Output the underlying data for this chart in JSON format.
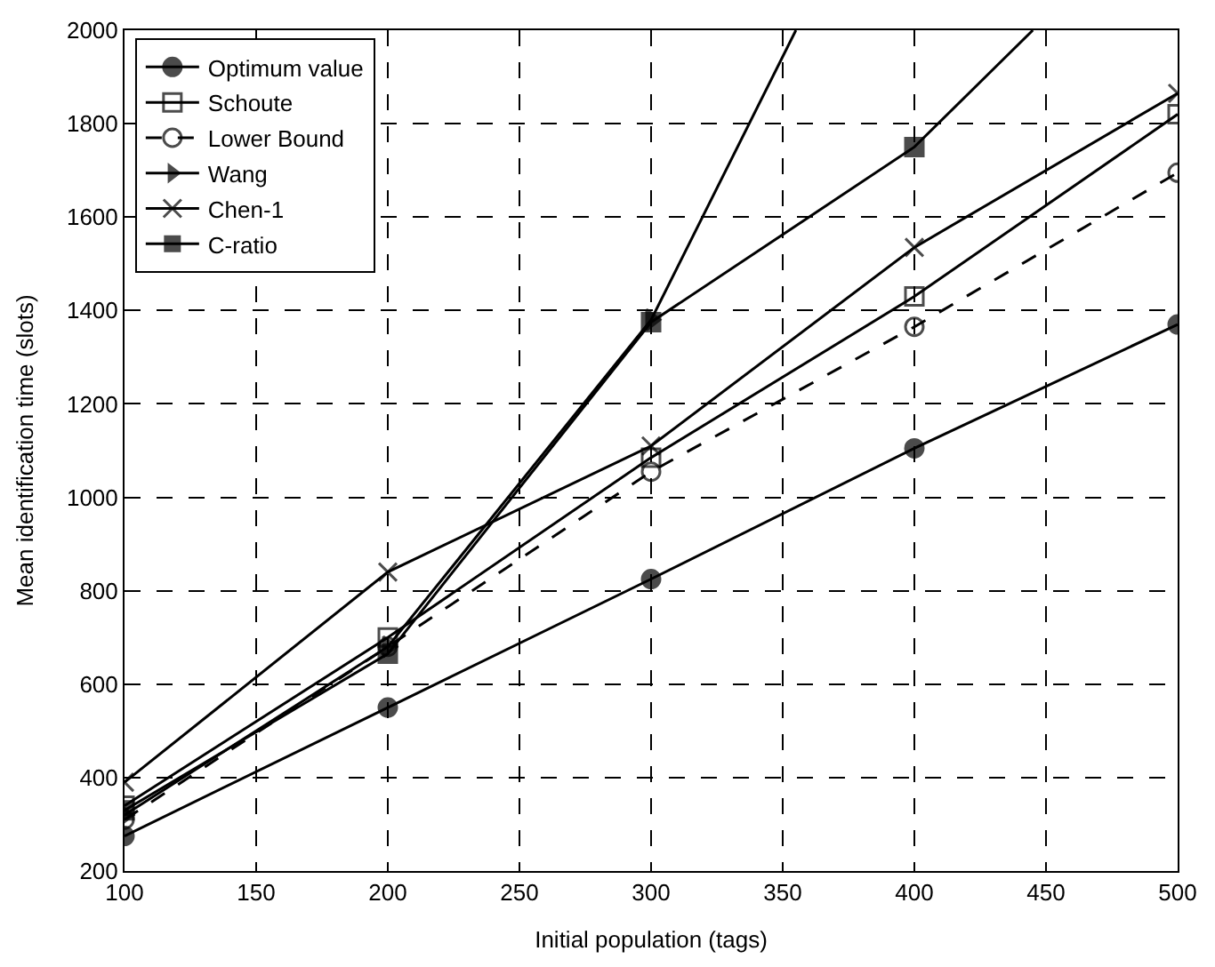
{
  "chart_data": {
    "type": "line",
    "xlabel": "Initial population (tags)",
    "ylabel": "Mean identification time (slots)",
    "x": [
      100,
      200,
      300,
      400,
      500
    ],
    "xlim": [
      100,
      500
    ],
    "xticks": [
      100,
      150,
      200,
      250,
      300,
      350,
      400,
      450,
      500
    ],
    "ylim": [
      200,
      2000
    ],
    "yticks": [
      200,
      400,
      600,
      800,
      1000,
      1200,
      1400,
      1600,
      1800,
      2000
    ],
    "grid": true,
    "legend": "top left",
    "series": [
      {
        "name": "Optimum value",
        "color": "#000000",
        "marker": "circle",
        "values": [
          275,
          550,
          825,
          1105,
          1370
        ]
      },
      {
        "name": "Schoute",
        "color": "#000000",
        "marker": "square-open",
        "values": [
          340,
          700,
          1085,
          1430,
          1820
        ]
      },
      {
        "name": "Lower Bound",
        "color": "#000000",
        "marker": "circle-open",
        "line_style": "dashed",
        "values": [
          310,
          680,
          1055,
          1365,
          1695
        ]
      },
      {
        "name": "Wang",
        "color": "#000000",
        "marker": "triangle-right",
        "x": [
          100,
          200,
          300,
          355
        ],
        "values": [
          320,
          680,
          1380,
          2000
        ]
      },
      {
        "name": "Chen-1",
        "color": "#000000",
        "marker": "x",
        "values": [
          390,
          840,
          1110,
          1535,
          1865
        ]
      },
      {
        "name": "C-ratio",
        "color": "#000000",
        "marker": "square",
        "x": [
          100,
          200,
          300,
          400,
          445
        ],
        "values": [
          330,
          665,
          1375,
          1750,
          2000
        ]
      }
    ]
  }
}
